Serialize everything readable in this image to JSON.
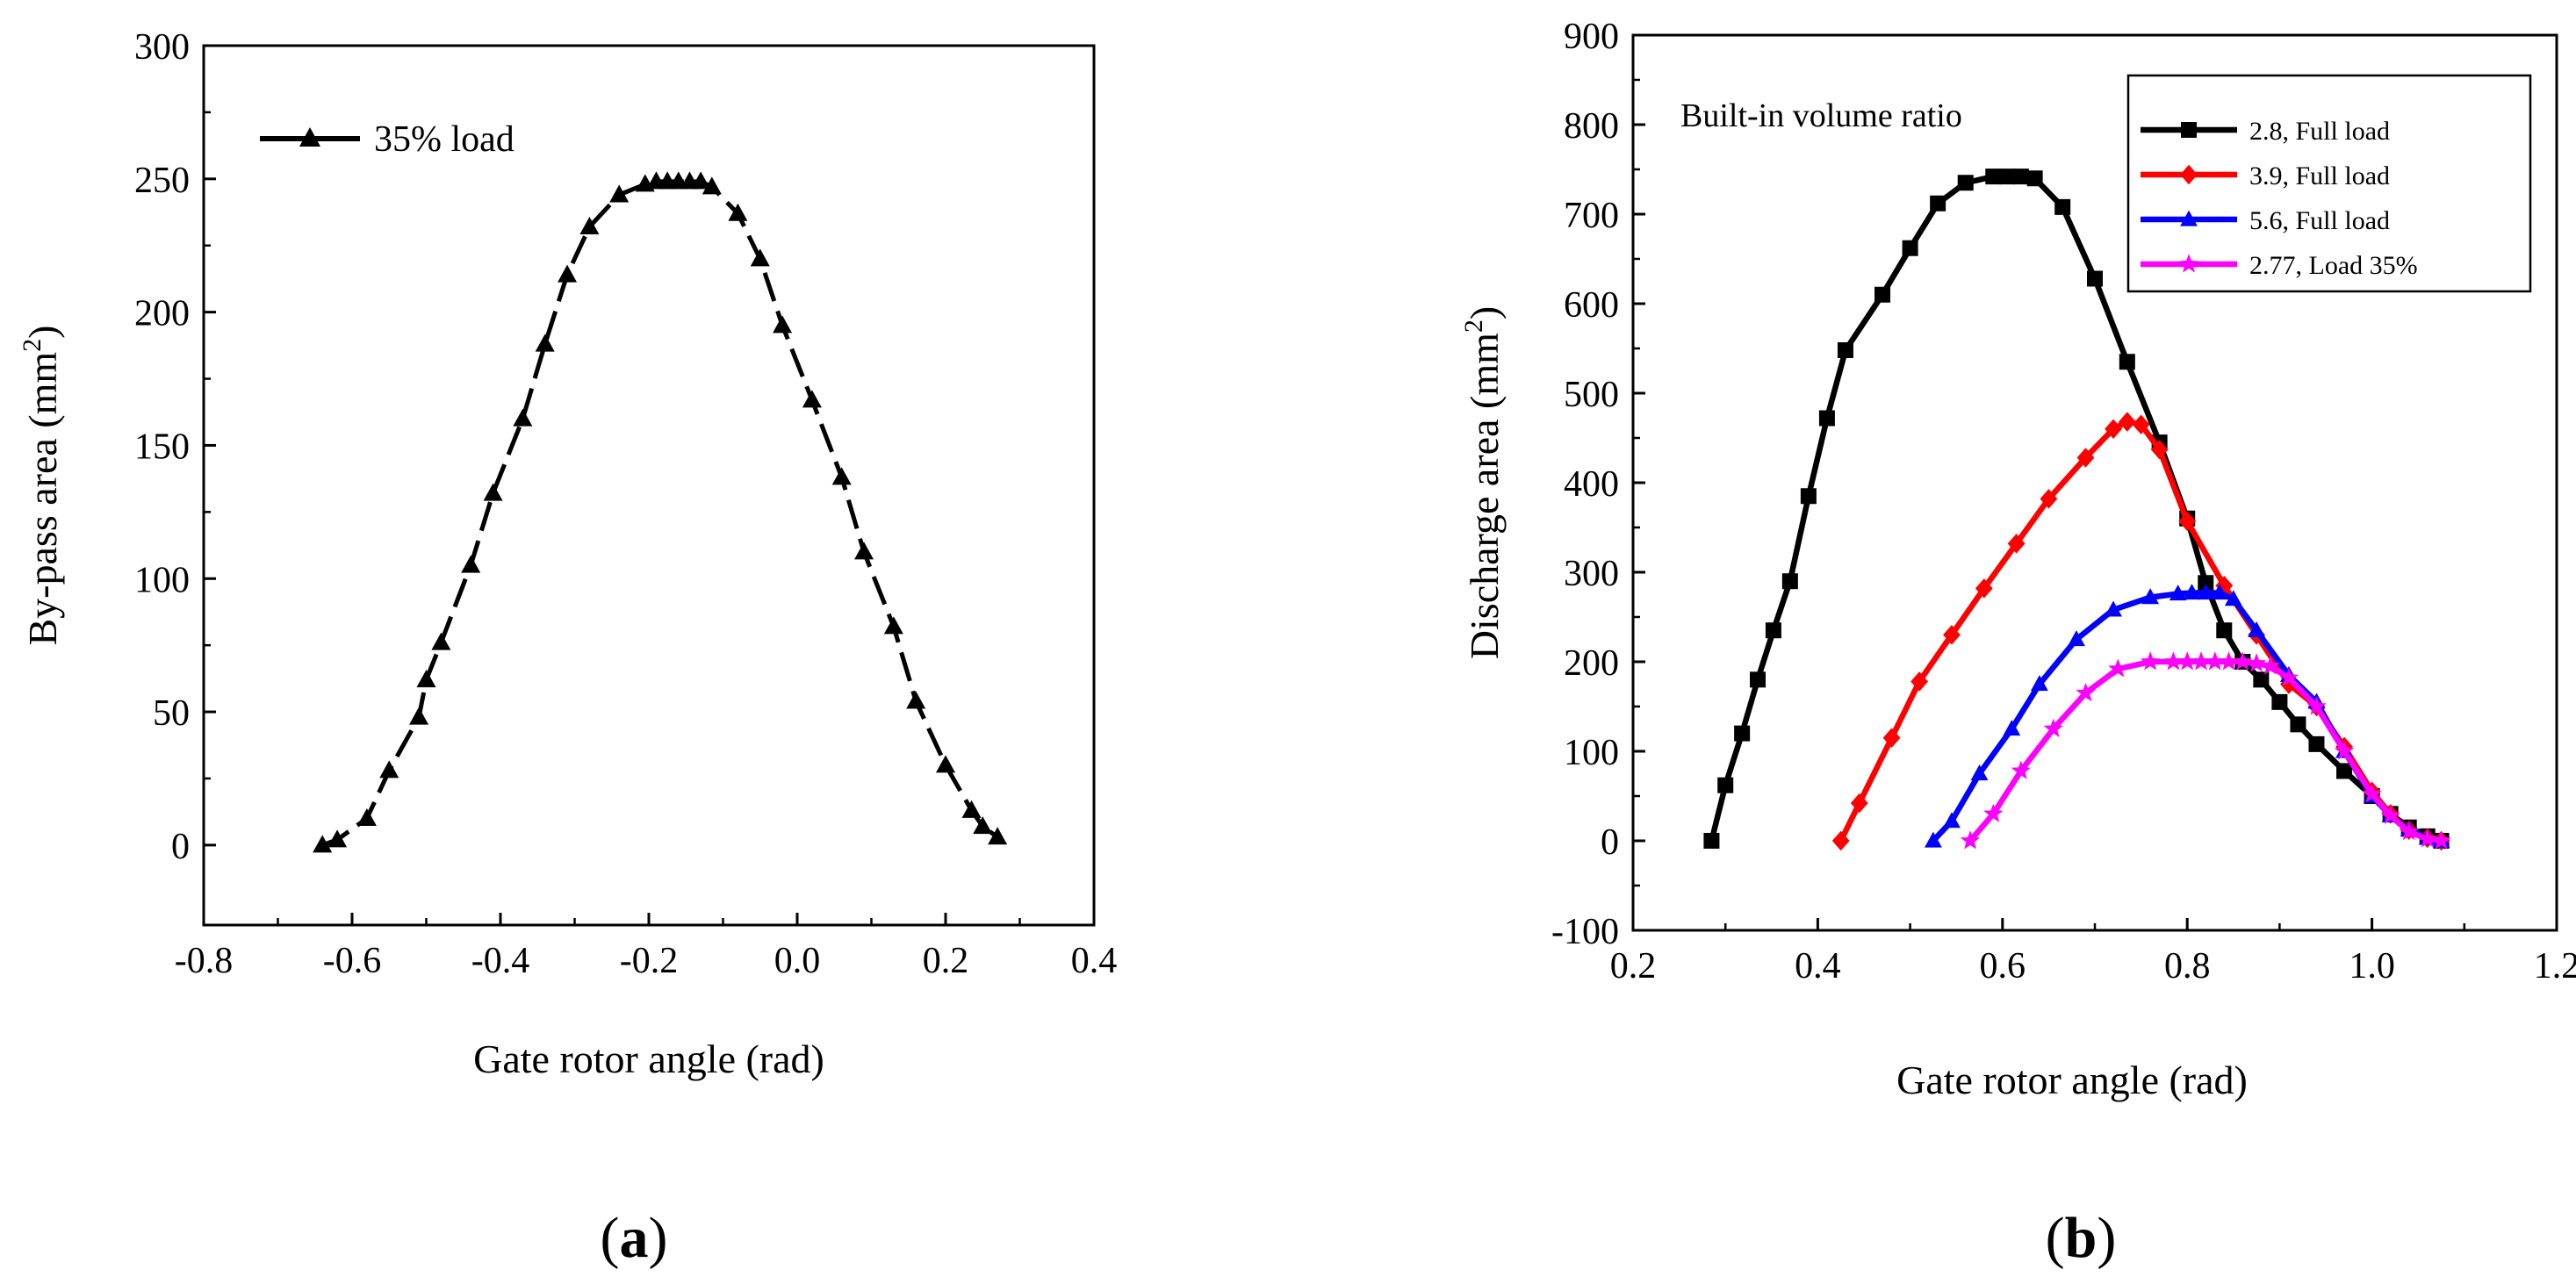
{
  "chart_data": [
    {
      "type": "line",
      "panel": "a",
      "panel_label": {
        "open": "(",
        "letter": "a",
        "close": ")"
      },
      "xlabel": "Gate rotor angle (rad)",
      "ylabel": {
        "prefix": "By-pass area (mm",
        "sup": "2",
        "suffix": ")"
      },
      "xlim": [
        -0.8,
        0.4
      ],
      "ylim": [
        -30,
        300
      ],
      "xticks": [
        "-0.8",
        "-0.6",
        "-0.4",
        "-0.2",
        "0.0",
        "0.2",
        "0.4"
      ],
      "xtick_values": [
        -0.8,
        -0.6,
        -0.4,
        -0.2,
        0.0,
        0.2,
        0.4
      ],
      "yticks": [
        "0",
        "50",
        "100",
        "150",
        "200",
        "250",
        "300"
      ],
      "ytick_values": [
        0,
        50,
        100,
        150,
        200,
        250,
        300
      ],
      "grid": false,
      "legend_position": "top-left",
      "series": [
        {
          "name": "35% load",
          "color": "#000000",
          "marker": "triangle",
          "line_style": "dashed",
          "x": [
            -0.64,
            -0.62,
            -0.58,
            -0.55,
            -0.51,
            -0.5,
            -0.48,
            -0.44,
            -0.41,
            -0.37,
            -0.34,
            -0.31,
            -0.28,
            -0.24,
            -0.205,
            -0.19,
            -0.175,
            -0.16,
            -0.145,
            -0.13,
            -0.115,
            -0.08,
            -0.05,
            -0.02,
            0.02,
            0.06,
            0.09,
            0.13,
            0.16,
            0.2,
            0.235,
            0.25,
            0.27
          ],
          "y": [
            0,
            2,
            10,
            28,
            48,
            62,
            76,
            105,
            132,
            160,
            188,
            214,
            232,
            244,
            248,
            249,
            249,
            249,
            249,
            249,
            247,
            237,
            220,
            195,
            167,
            138,
            110,
            82,
            54,
            30,
            13,
            7,
            3
          ]
        }
      ]
    },
    {
      "type": "line",
      "panel": "b",
      "panel_label": {
        "open": "(",
        "letter": "b",
        "close": ")"
      },
      "xlabel": "Gate rotor angle (rad)",
      "ylabel": {
        "prefix": "Discharge area (mm",
        "sup": "2",
        "suffix": ")"
      },
      "xlim": [
        0.2,
        1.2
      ],
      "ylim": [
        -100,
        900
      ],
      "xticks": [
        "0.2",
        "0.4",
        "0.6",
        "0.8",
        "1.0",
        "1.2"
      ],
      "xtick_values": [
        0.2,
        0.4,
        0.6,
        0.8,
        1.0,
        1.2
      ],
      "yticks": [
        "-100",
        "0",
        "100",
        "200",
        "300",
        "400",
        "500",
        "600",
        "700",
        "800",
        "900"
      ],
      "ytick_values": [
        -100,
        0,
        100,
        200,
        300,
        400,
        500,
        600,
        700,
        800,
        900
      ],
      "grid": false,
      "legend_position": "top-right",
      "annotation": {
        "text": "Built-in volume ratio",
        "arrow_to": [
          0.76,
          765
        ],
        "arrow_from": [
          0.88,
          730
        ]
      },
      "series": [
        {
          "name": "2.8, Full load",
          "color": "#000000",
          "marker": "square",
          "x": [
            0.285,
            0.3,
            0.318,
            0.335,
            0.352,
            0.37,
            0.39,
            0.41,
            0.43,
            0.47,
            0.5,
            0.53,
            0.56,
            0.59,
            0.605,
            0.62,
            0.635,
            0.665,
            0.7,
            0.735,
            0.77,
            0.8,
            0.82,
            0.84,
            0.86,
            0.88,
            0.9,
            0.92,
            0.94,
            0.97,
            1.0,
            1.02,
            1.04,
            1.06,
            1.075
          ],
          "y": [
            0,
            62,
            120,
            180,
            235,
            290,
            385,
            472,
            548,
            610,
            662,
            712,
            735,
            742,
            742,
            742,
            740,
            708,
            628,
            535,
            445,
            360,
            288,
            235,
            200,
            180,
            155,
            130,
            108,
            78,
            50,
            30,
            15,
            5,
            0
          ]
        },
        {
          "name": "3.9, Full load",
          "color": "#ff0000",
          "marker": "diamond",
          "x": [
            0.425,
            0.445,
            0.48,
            0.51,
            0.545,
            0.58,
            0.615,
            0.65,
            0.69,
            0.72,
            0.735,
            0.75,
            0.77,
            0.8,
            0.84,
            0.875,
            0.91,
            0.94,
            0.97,
            1.0,
            1.02,
            1.04,
            1.06,
            1.075
          ],
          "y": [
            0,
            42,
            115,
            178,
            230,
            282,
            332,
            382,
            428,
            460,
            468,
            465,
            437,
            357,
            285,
            230,
            175,
            150,
            105,
            55,
            30,
            12,
            3,
            0
          ]
        },
        {
          "name": "5.6, Full load",
          "color": "#0000ff",
          "marker": "triangle",
          "x": [
            0.525,
            0.545,
            0.575,
            0.61,
            0.64,
            0.68,
            0.72,
            0.76,
            0.79,
            0.805,
            0.82,
            0.835,
            0.85,
            0.875,
            0.91,
            0.94,
            0.97,
            1.0,
            1.02,
            1.04,
            1.06,
            1.075
          ],
          "y": [
            0,
            22,
            75,
            125,
            175,
            225,
            258,
            272,
            276,
            277,
            277,
            277,
            270,
            235,
            185,
            155,
            100,
            50,
            28,
            12,
            3,
            0
          ]
        },
        {
          "name": "2.77, Load 35%",
          "color": "#ff00ff",
          "marker": "star",
          "x": [
            0.565,
            0.59,
            0.62,
            0.655,
            0.69,
            0.725,
            0.76,
            0.785,
            0.8,
            0.815,
            0.83,
            0.845,
            0.86,
            0.875,
            0.89,
            0.91,
            0.94,
            0.97,
            1.0,
            1.02,
            1.04,
            1.06,
            1.075
          ],
          "y": [
            0,
            30,
            78,
            125,
            165,
            192,
            200,
            200,
            200,
            200,
            200,
            200,
            200,
            198,
            195,
            182,
            150,
            100,
            52,
            28,
            10,
            2,
            0
          ]
        }
      ]
    }
  ]
}
